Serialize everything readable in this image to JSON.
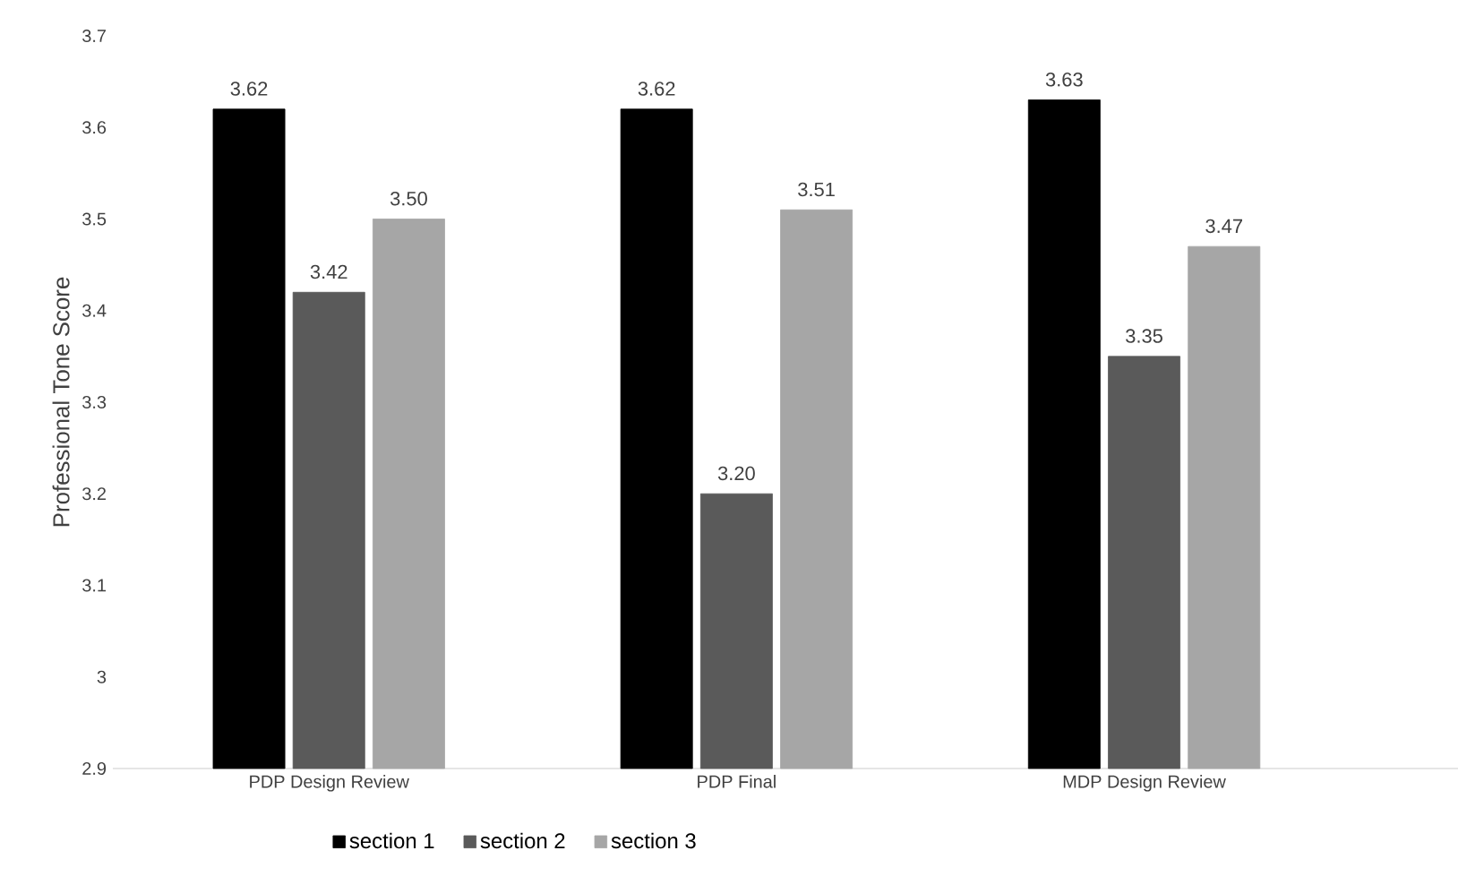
{
  "chart_data": {
    "type": "bar",
    "ylabel": "Professional Tone Score",
    "categories": [
      "PDP Design Review",
      "PDP Final",
      "MDP Design Review"
    ],
    "series": [
      {
        "name": "section 1",
        "color": "#000000",
        "values": [
          3.62,
          3.62,
          3.63
        ],
        "value_labels": [
          "3.62",
          "3.62",
          "3.63"
        ]
      },
      {
        "name": "section 2",
        "color": "#5a5a5a",
        "values": [
          3.42,
          3.2,
          3.35
        ],
        "value_labels": [
          "3.42",
          "3.20",
          "3.35"
        ]
      },
      {
        "name": "section 3",
        "color": "#a6a6a6",
        "values": [
          3.5,
          3.51,
          3.47
        ],
        "value_labels": [
          "3.50",
          "3.51",
          "3.47"
        ]
      }
    ],
    "ylim": [
      2.9,
      3.7
    ],
    "yticks": [
      2.9,
      3,
      3.1,
      3.2,
      3.3,
      3.4,
      3.5,
      3.6,
      3.7
    ],
    "grid": false,
    "legend": "bottom"
  }
}
